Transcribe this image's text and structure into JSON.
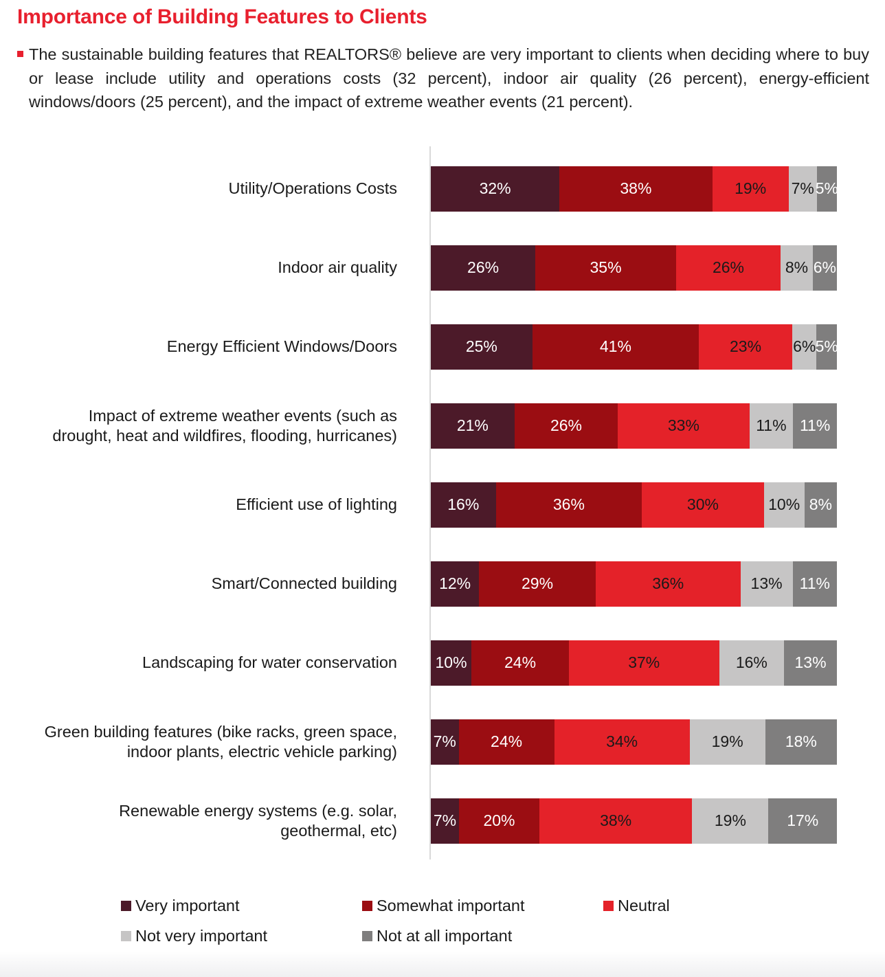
{
  "page": {
    "title": "Importance of Building Features to Clients",
    "intro": "The sustainable building features that REALTORS® believe are very important to clients when deciding where to buy or lease include utility and operations costs (32 percent), indoor air quality (26 percent), energy-efficient windows/doors (25 percent), and the impact of extreme weather events (21 percent)."
  },
  "colors": {
    "title_red": "#E8202E",
    "bullet_red": "#E8202E",
    "body_text": "#212121",
    "category_text": "#1A1A1A",
    "axis_line": "#D9D9D9"
  },
  "chart_data": {
    "type": "bar",
    "variant": "100pct-stacked-horizontal",
    "value_suffix": "%",
    "grid": false,
    "legend_position": "bottom",
    "categories": [
      "Utility/Operations Costs",
      "Indoor air quality",
      "Energy Efficient Windows/Doors",
      "Impact of extreme weather events (such as drought, heat and wildfires, flooding, hurricanes)",
      "Efficient use of lighting",
      "Smart/Connected building",
      "Landscaping for water conservation",
      "Green building features (bike racks, green space, indoor plants, electric vehicle parking)",
      "Renewable energy systems (e.g. solar, geothermal, etc)"
    ],
    "series": [
      {
        "name": "Very important",
        "color": "#4C1A29",
        "label_color": "#FFFFFF",
        "values": [
          32,
          26,
          25,
          21,
          16,
          12,
          10,
          7,
          7
        ]
      },
      {
        "name": "Somewhat important",
        "color": "#9B0D12",
        "label_color": "#FFFFFF",
        "values": [
          38,
          35,
          41,
          26,
          36,
          29,
          24,
          24,
          20
        ]
      },
      {
        "name": "Neutral",
        "color": "#E42229",
        "label_color": "#1A1A1A",
        "values": [
          19,
          26,
          23,
          33,
          30,
          36,
          37,
          34,
          38
        ]
      },
      {
        "name": "Not very important",
        "color": "#C6C5C5",
        "label_color": "#1A1A1A",
        "values": [
          7,
          8,
          6,
          11,
          10,
          13,
          16,
          19,
          19
        ]
      },
      {
        "name": "Not at all important",
        "color": "#7F7E7E",
        "label_color": "#FFFFFF",
        "values": [
          5,
          6,
          5,
          11,
          8,
          11,
          13,
          18,
          17
        ]
      }
    ]
  }
}
